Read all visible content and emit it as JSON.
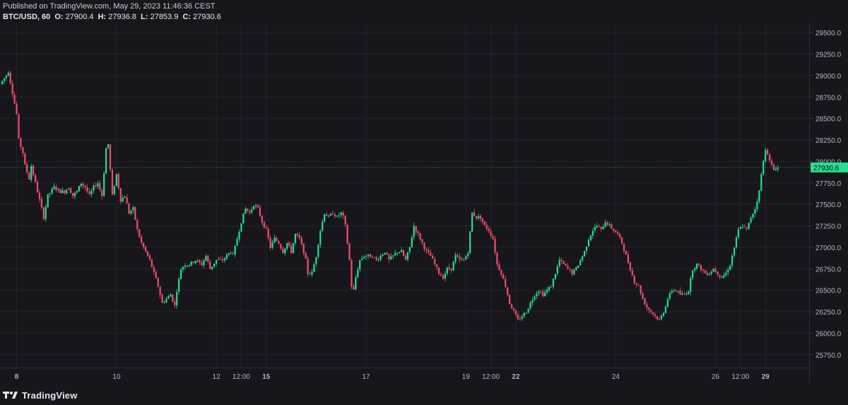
{
  "header": {
    "published": "Published on TradingView.com, May 29, 2023 11:46:36 CEST",
    "symbol": "BTC/USD, 60",
    "o_label": "O:",
    "o_value": "27900.4",
    "h_label": "H:",
    "h_value": "27936.8",
    "l_label": "L:",
    "l_value": "27853.9",
    "c_label": "C:",
    "c_value": "27930.6"
  },
  "footer": {
    "brand": "TradingView"
  },
  "colors": {
    "up": "#26e08f",
    "down": "#f0516a",
    "background": "#17161d",
    "grid": "#22232c",
    "price_tag": "#26e08f"
  },
  "chart_data": {
    "type": "candlestick",
    "interval": "60",
    "ylim": [
      25600,
      29600
    ],
    "y_ticks": [
      "29500.0",
      "29250.0",
      "29000.0",
      "28750.0",
      "28500.0",
      "28250.0",
      "28000.0",
      "27750.0",
      "27500.0",
      "27250.0",
      "27000.0",
      "26750.0",
      "26500.0",
      "26250.0",
      "26000.0",
      "25750.0"
    ],
    "x_ticks": [
      {
        "label": "8",
        "bold": true,
        "hour": 36
      },
      {
        "label": "10",
        "bold": false,
        "hour": 84
      },
      {
        "label": "12",
        "bold": false,
        "hour": 132
      },
      {
        "label": "12:00",
        "bold": false,
        "hour": 144
      },
      {
        "label": "15",
        "bold": true,
        "hour": 156
      },
      {
        "label": "17",
        "bold": false,
        "hour": 204
      },
      {
        "label": "19",
        "bold": false,
        "hour": 252
      },
      {
        "label": "12:00",
        "bold": false,
        "hour": 264
      },
      {
        "label": "22",
        "bold": true,
        "hour": 276
      },
      {
        "label": "24",
        "bold": false,
        "hour": 324
      },
      {
        "label": "26",
        "bold": false,
        "hour": 372
      },
      {
        "label": "12:00",
        "bold": false,
        "hour": 384
      },
      {
        "label": "29",
        "bold": true,
        "hour": 396
      }
    ],
    "x_range_hours": [
      28,
      417
    ],
    "last_price": "27930.6",
    "last_price_value": 27930.6,
    "path": [
      [
        29,
        28900
      ],
      [
        32,
        29000
      ],
      [
        33,
        29050
      ],
      [
        35,
        28800
      ],
      [
        37,
        28550
      ],
      [
        38,
        28250
      ],
      [
        40,
        28100
      ],
      [
        41,
        27950
      ],
      [
        43,
        27800
      ],
      [
        44,
        27950
      ],
      [
        46,
        27750
      ],
      [
        48,
        27550
      ],
      [
        50,
        27350
      ],
      [
        52,
        27600
      ],
      [
        55,
        27700
      ],
      [
        58,
        27650
      ],
      [
        60,
        27650
      ],
      [
        62,
        27700
      ],
      [
        64,
        27600
      ],
      [
        66,
        27650
      ],
      [
        68,
        27750
      ],
      [
        70,
        27700
      ],
      [
        72,
        27600
      ],
      [
        74,
        27700
      ],
      [
        76,
        27750
      ],
      [
        78,
        27600
      ],
      [
        80,
        28150
      ],
      [
        81,
        28200
      ],
      [
        83,
        27600
      ],
      [
        85,
        27850
      ],
      [
        87,
        27550
      ],
      [
        89,
        27600
      ],
      [
        91,
        27400
      ],
      [
        93,
        27450
      ],
      [
        95,
        27200
      ],
      [
        97,
        27050
      ],
      [
        99,
        26950
      ],
      [
        101,
        26850
      ],
      [
        103,
        26700
      ],
      [
        105,
        26550
      ],
      [
        107,
        26350
      ],
      [
        109,
        26400
      ],
      [
        111,
        26450
      ],
      [
        113,
        26320
      ],
      [
        114,
        26500
      ],
      [
        116,
        26750
      ],
      [
        118,
        26800
      ],
      [
        120,
        26800
      ],
      [
        123,
        26850
      ],
      [
        126,
        26800
      ],
      [
        128,
        26900
      ],
      [
        130,
        26750
      ],
      [
        133,
        26850
      ],
      [
        136,
        26850
      ],
      [
        138,
        26900
      ],
      [
        140,
        26950
      ],
      [
        141,
        26900
      ],
      [
        143,
        27100
      ],
      [
        145,
        27300
      ],
      [
        147,
        27450
      ],
      [
        149,
        27400
      ],
      [
        151,
        27500
      ],
      [
        153,
        27450
      ],
      [
        155,
        27300
      ],
      [
        157,
        27200
      ],
      [
        159,
        27000
      ],
      [
        161,
        27100
      ],
      [
        163,
        27050
      ],
      [
        165,
        26950
      ],
      [
        167,
        27050
      ],
      [
        169,
        26950
      ],
      [
        171,
        27150
      ],
      [
        173,
        27100
      ],
      [
        175,
        26950
      ],
      [
        176,
        26850
      ],
      [
        177,
        26700
      ],
      [
        179,
        26700
      ],
      [
        181,
        26900
      ],
      [
        183,
        27200
      ],
      [
        185,
        27400
      ],
      [
        187,
        27350
      ],
      [
        189,
        27400
      ],
      [
        191,
        27350
      ],
      [
        193,
        27400
      ],
      [
        194,
        27350
      ],
      [
        195,
        27250
      ],
      [
        196,
        27050
      ],
      [
        197,
        26850
      ],
      [
        198,
        26550
      ],
      [
        199,
        26500
      ],
      [
        200,
        26650
      ],
      [
        202,
        26850
      ],
      [
        204,
        26900
      ],
      [
        206,
        26900
      ],
      [
        208,
        26900
      ],
      [
        210,
        26850
      ],
      [
        212,
        26900
      ],
      [
        214,
        26950
      ],
      [
        216,
        26850
      ],
      [
        218,
        26900
      ],
      [
        220,
        26950
      ],
      [
        222,
        26950
      ],
      [
        224,
        26850
      ],
      [
        226,
        27000
      ],
      [
        228,
        27250
      ],
      [
        230,
        27150
      ],
      [
        232,
        27050
      ],
      [
        234,
        26950
      ],
      [
        236,
        26900
      ],
      [
        238,
        26800
      ],
      [
        240,
        26700
      ],
      [
        242,
        26650
      ],
      [
        244,
        26750
      ],
      [
        246,
        26750
      ],
      [
        248,
        26900
      ],
      [
        250,
        26850
      ],
      [
        252,
        26850
      ],
      [
        254,
        26950
      ],
      [
        256,
        27400
      ],
      [
        258,
        27350
      ],
      [
        260,
        27350
      ],
      [
        262,
        27250
      ],
      [
        264,
        27200
      ],
      [
        266,
        27100
      ],
      [
        268,
        26800
      ],
      [
        270,
        26700
      ],
      [
        272,
        26550
      ],
      [
        274,
        26350
      ],
      [
        276,
        26250
      ],
      [
        278,
        26150
      ],
      [
        280,
        26200
      ],
      [
        282,
        26250
      ],
      [
        284,
        26350
      ],
      [
        286,
        26450
      ],
      [
        288,
        26500
      ],
      [
        290,
        26450
      ],
      [
        292,
        26500
      ],
      [
        294,
        26550
      ],
      [
        296,
        26700
      ],
      [
        298,
        26850
      ],
      [
        300,
        26800
      ],
      [
        302,
        26750
      ],
      [
        304,
        26700
      ],
      [
        306,
        26750
      ],
      [
        308,
        26850
      ],
      [
        310,
        26950
      ],
      [
        312,
        27100
      ],
      [
        314,
        27200
      ],
      [
        316,
        27250
      ],
      [
        318,
        27200
      ],
      [
        320,
        27300
      ],
      [
        322,
        27250
      ],
      [
        324,
        27200
      ],
      [
        326,
        27150
      ],
      [
        328,
        27050
      ],
      [
        330,
        26900
      ],
      [
        332,
        26750
      ],
      [
        334,
        26600
      ],
      [
        336,
        26550
      ],
      [
        338,
        26400
      ],
      [
        340,
        26300
      ],
      [
        342,
        26250
      ],
      [
        344,
        26200
      ],
      [
        346,
        26150
      ],
      [
        348,
        26250
      ],
      [
        350,
        26400
      ],
      [
        352,
        26500
      ],
      [
        354,
        26500
      ],
      [
        356,
        26450
      ],
      [
        358,
        26450
      ],
      [
        360,
        26500
      ],
      [
        362,
        26750
      ],
      [
        364,
        26800
      ],
      [
        366,
        26750
      ],
      [
        368,
        26700
      ],
      [
        370,
        26700
      ],
      [
        372,
        26750
      ],
      [
        374,
        26700
      ],
      [
        376,
        26650
      ],
      [
        378,
        26700
      ],
      [
        380,
        26800
      ],
      [
        382,
        27000
      ],
      [
        384,
        27200
      ],
      [
        386,
        27250
      ],
      [
        388,
        27200
      ],
      [
        390,
        27350
      ],
      [
        392,
        27450
      ],
      [
        394,
        27650
      ],
      [
        395,
        27850
      ],
      [
        396,
        28000
      ],
      [
        397,
        28150
      ],
      [
        398,
        28100
      ],
      [
        399,
        28000
      ],
      [
        400,
        27950
      ],
      [
        401,
        27900
      ],
      [
        402,
        27930
      ]
    ]
  }
}
